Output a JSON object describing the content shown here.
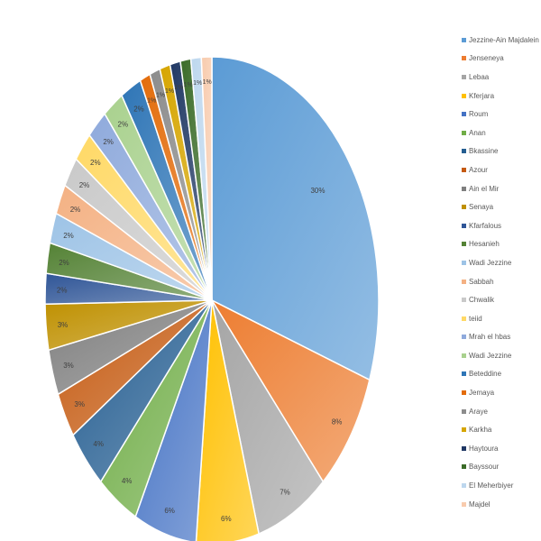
{
  "chart_data": {
    "type": "pie",
    "legend_position": "right",
    "categories": [
      "Jezzine-Ain Majdalein",
      "Jenseneya",
      "Lebaa",
      "Kferjara",
      "Roum",
      "Anan",
      "Bkassine",
      "Azour",
      "Ain el Mir",
      "Senaya",
      "Kfarfalous",
      "Hesanieh",
      "Wadi Jezzine",
      "Sabbah",
      "Chwalik",
      "teiid",
      "Mrah el hbas",
      "Wadi Jezzine",
      "Beteddine",
      "Jemaya",
      "Araye",
      "Karkha",
      "Haytoura",
      "Bayssour",
      "El Meherbiyer",
      "Majdel"
    ],
    "values": [
      30,
      8,
      7,
      6,
      6,
      4,
      4,
      3,
      3,
      3,
      2,
      2,
      2,
      2,
      2,
      2,
      2,
      2,
      2,
      1,
      1,
      1,
      1,
      1,
      1,
      1
    ],
    "labels": [
      "30%",
      "8%",
      "7%",
      "6%",
      "6%",
      "4%",
      "4%",
      "3%",
      "3%",
      "3%",
      "2%",
      "2%",
      "2%",
      "2%",
      "2%",
      "2%",
      "2%",
      "2%",
      "2%",
      "1%",
      "1%",
      "1%",
      "1%",
      "1%",
      "1%",
      "1%"
    ],
    "colors": [
      "#5b9bd5",
      "#ed7d31",
      "#a5a5a5",
      "#ffc000",
      "#4472c4",
      "#70ad47",
      "#255e91",
      "#c55a11",
      "#7f7f7f",
      "#bf9000",
      "#2f5597",
      "#548235",
      "#9dc3e6",
      "#f4b183",
      "#c9c9c9",
      "#ffd966",
      "#8faadc",
      "#a9d18e",
      "#2e75b6",
      "#e36c0a",
      "#8c8c8c",
      "#d6a500",
      "#203864",
      "#3a6b27",
      "#bdd7ee",
      "#f8cbad"
    ]
  }
}
